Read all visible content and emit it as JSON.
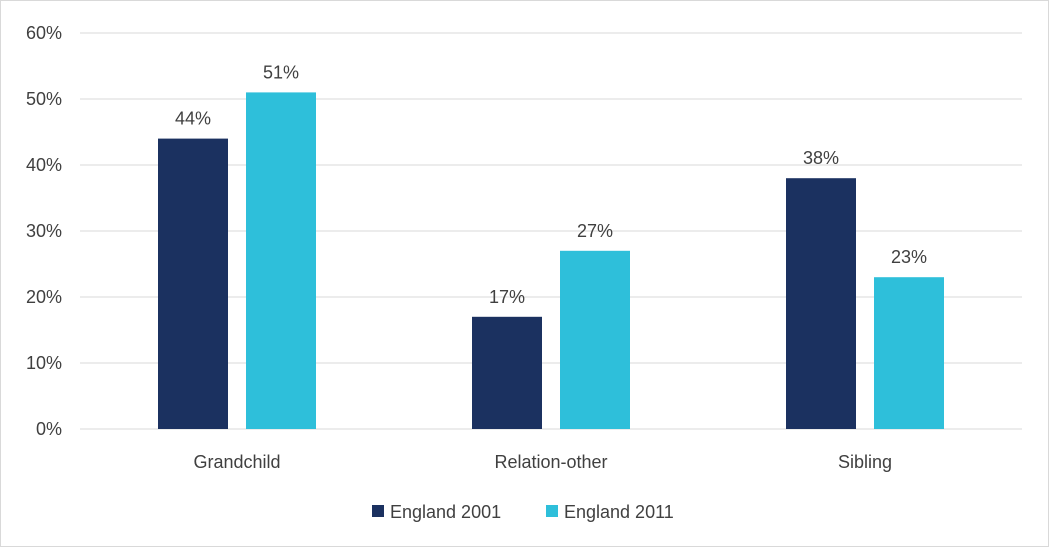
{
  "chart_data": {
    "type": "bar",
    "categories": [
      "Grandchild",
      "Relation-other",
      "Sibling"
    ],
    "series": [
      {
        "name": "England 2001",
        "values": [
          44,
          17,
          38
        ],
        "labels": [
          "44%",
          "17%",
          "38%"
        ],
        "color": "#1b3160"
      },
      {
        "name": "England 2011",
        "values": [
          51,
          27,
          23
        ],
        "labels": [
          "51%",
          "27%",
          "23%"
        ],
        "color": "#2ebfda"
      }
    ],
    "ylim": [
      0,
      60
    ],
    "yticks": [
      0,
      10,
      20,
      30,
      40,
      50,
      60
    ],
    "ytick_labels": [
      "0%",
      "10%",
      "20%",
      "30%",
      "40%",
      "50%",
      "60%"
    ],
    "grid": true,
    "legend_position": "bottom",
    "gridline_color": "#d9d9d9"
  }
}
